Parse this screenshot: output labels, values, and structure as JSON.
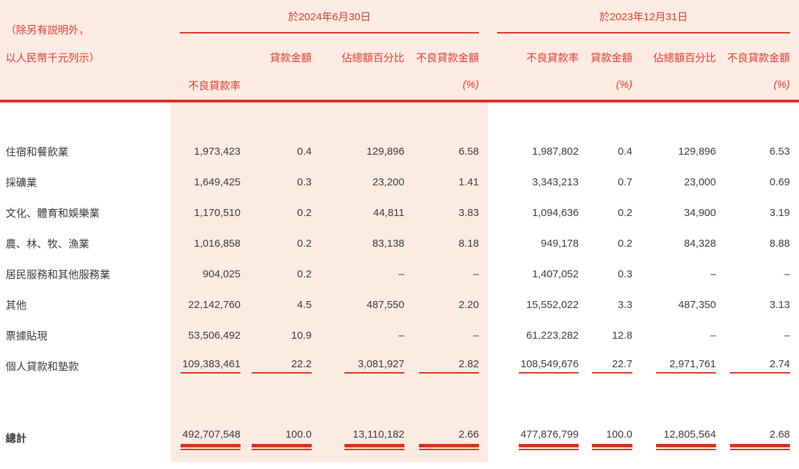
{
  "colors": {
    "accent_red": "#e03a2a",
    "pink_background": "#fcebe3",
    "text_dark": "#3a3a3a"
  },
  "header": {
    "note_line1": "（除另有説明外，",
    "note_line2": "以人民幣千元列示）",
    "groups": [
      {
        "title": "於2024年6月30日",
        "col1": "貸款金額",
        "col2": "佔總額百分比",
        "col3": "不良貸款金額",
        "col4": "不良貸款率",
        "unit": "(%)"
      },
      {
        "title": "於2023年12月31日",
        "col1": "貸款金額",
        "col2": "佔總額百分比",
        "col3": "不良貸款金額",
        "col4": "不良貸款率",
        "unit": "(%)"
      }
    ]
  },
  "rows": [
    {
      "label": "住宿和餐飲業",
      "c": [
        "1,973,423",
        "0.4",
        "129,896",
        "6.58",
        "1,987,802",
        "0.4",
        "129,896",
        "6.53"
      ]
    },
    {
      "label": "採礦業",
      "c": [
        "1,649,425",
        "0.3",
        "23,200",
        "1.41",
        "3,343,213",
        "0.7",
        "23,000",
        "0.69"
      ]
    },
    {
      "label": "文化、體育和娛樂業",
      "c": [
        "1,170,510",
        "0.2",
        "44,811",
        "3.83",
        "1,094,636",
        "0.2",
        "34,900",
        "3.19"
      ]
    },
    {
      "label": "農、林、牧、漁業",
      "c": [
        "1,016,858",
        "0.2",
        "83,138",
        "8.18",
        "949,178",
        "0.2",
        "84,328",
        "8.88"
      ]
    },
    {
      "label": "居民服務和其他服務業",
      "c": [
        "904,025",
        "0.2",
        "–",
        "–",
        "1,407,052",
        "0.3",
        "–",
        "–"
      ]
    },
    {
      "label": "其他",
      "c": [
        "22,142,760",
        "4.5",
        "487,550",
        "2.20",
        "15,552,022",
        "3.3",
        "487,350",
        "3.13"
      ]
    },
    {
      "label": "票據貼現",
      "c": [
        "53,506,492",
        "10.9",
        "–",
        "–",
        "61,223,282",
        "12.8",
        "–",
        "–"
      ]
    },
    {
      "label": "個人貸款和墊款",
      "c": [
        "109,383,461",
        "22.2",
        "3,081,927",
        "2.82",
        "108,549,676",
        "22.7",
        "2,971,761",
        "2.74"
      ]
    }
  ],
  "total": {
    "label": "總計",
    "c": [
      "492,707,548",
      "100.0",
      "13,110,182",
      "2.66",
      "477,876,799",
      "100.0",
      "12,805,564",
      "2.68"
    ]
  }
}
